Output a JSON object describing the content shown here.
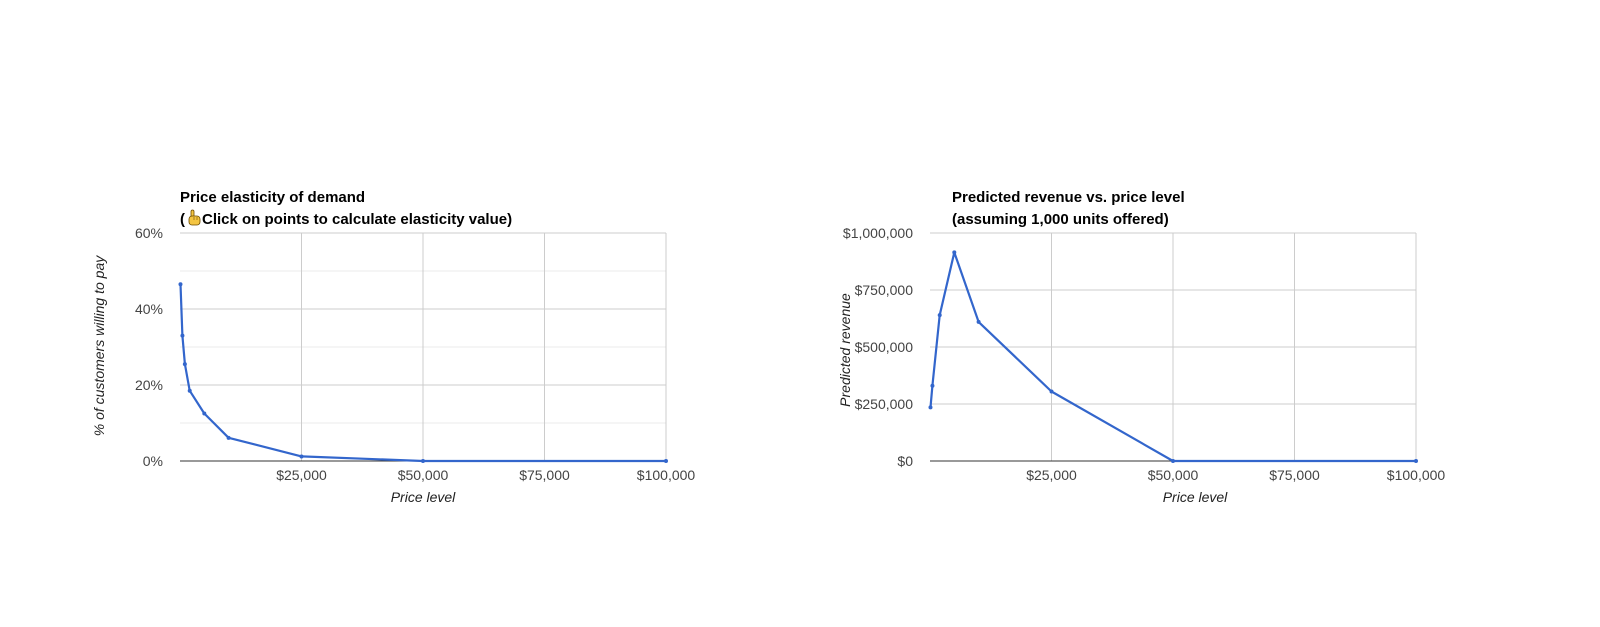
{
  "chart_data": [
    {
      "type": "line",
      "title": "Price elasticity of demand",
      "subtitle": "Click on points to calculate elasticity value)",
      "subtitle_prefix": "(",
      "subtitle_icon": "pointing-hand-icon",
      "xlabel": "Price level",
      "ylabel": "% of customers willing to pay",
      "xlim": [
        0,
        100000
      ],
      "ylim": [
        0,
        0.6
      ],
      "x_ticks": [
        25000,
        50000,
        75000,
        100000
      ],
      "x_tick_labels": [
        "$25,000",
        "$50,000",
        "$75,000",
        "$100,000"
      ],
      "y_ticks": [
        0,
        0.2,
        0.4,
        0.6
      ],
      "y_tick_labels": [
        "0%",
        "20%",
        "40%",
        "60%"
      ],
      "y_minor_ticks": [
        0.1,
        0.3,
        0.5
      ],
      "grid": true,
      "color": "#3366cc",
      "series": [
        {
          "x": [
            100,
            500,
            1000,
            2000,
            5000,
            10000,
            25000,
            50000,
            100000
          ],
          "values": [
            0.465,
            0.33,
            0.255,
            0.185,
            0.125,
            0.061,
            0.012,
            0.0,
            0.0
          ]
        }
      ]
    },
    {
      "type": "line",
      "title": "Predicted revenue vs. price level",
      "subtitle": "(assuming 1,000 units offered)",
      "xlabel": "Price level",
      "ylabel": "Predicted revenue",
      "xlim": [
        0,
        100000
      ],
      "ylim": [
        0,
        1000000
      ],
      "x_ticks": [
        25000,
        50000,
        75000,
        100000
      ],
      "x_tick_labels": [
        "$25,000",
        "$50,000",
        "$75,000",
        "$100,000"
      ],
      "y_ticks": [
        0,
        250000,
        500000,
        750000,
        1000000
      ],
      "y_tick_labels": [
        "$0",
        "$250,000",
        "$500,000",
        "$750,000",
        "$1,000,000"
      ],
      "y_minor_ticks": [],
      "grid": true,
      "color": "#3366cc",
      "series": [
        {
          "x": [
            100,
            500,
            2000,
            5000,
            10000,
            25000,
            50000,
            100000
          ],
          "values": [
            235000,
            330000,
            640000,
            915000,
            610000,
            305000,
            0,
            0
          ]
        }
      ]
    }
  ]
}
